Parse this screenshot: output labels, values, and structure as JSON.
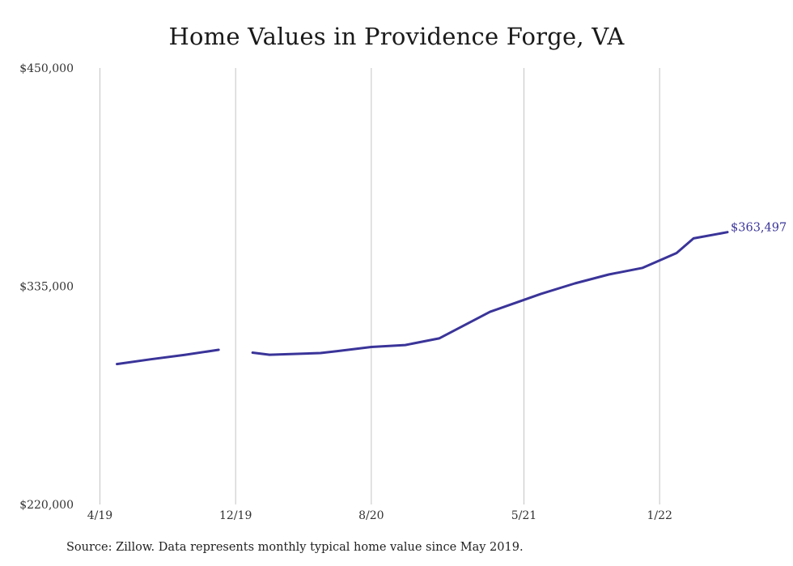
{
  "chart_data": {
    "type": "line",
    "title": "Home Values in Providence Forge, VA",
    "source": "Source: Zillow. Data represents monthly typical home value since May 2019.",
    "xlabel": "",
    "ylabel": "",
    "x_tick_labels": [
      "4/19",
      "12/19",
      "8/20",
      "5/21",
      "1/22"
    ],
    "x_tick_dates": [
      "2019-04",
      "2019-12",
      "2020-08",
      "2021-05",
      "2022-01"
    ],
    "y_ticks": [
      220000,
      335000,
      450000
    ],
    "y_tick_labels": [
      "$220,000",
      "$335,000",
      "$450,000"
    ],
    "ylim": [
      220000,
      450000
    ],
    "grid": "vertical gridlines at x ticks",
    "line_color": "#3a3499",
    "end_label": "$363,497",
    "series": [
      {
        "segments": [
          [
            {
              "x": "2019-05",
              "y": 294000
            },
            {
              "x": "2019-07",
              "y": 296500
            },
            {
              "x": "2019-09",
              "y": 298800
            },
            {
              "x": "2019-11",
              "y": 301500
            }
          ],
          [
            {
              "x": "2020-01",
              "y": 300000
            },
            {
              "x": "2020-02",
              "y": 298900
            },
            {
              "x": "2020-05",
              "y": 299800
            },
            {
              "x": "2020-06",
              "y": 300800
            },
            {
              "x": "2020-08",
              "y": 303000
            },
            {
              "x": "2020-10",
              "y": 304000
            },
            {
              "x": "2020-12",
              "y": 307500
            },
            {
              "x": "2021-03",
              "y": 321500
            },
            {
              "x": "2021-06",
              "y": 331000
            },
            {
              "x": "2021-08",
              "y": 336500
            },
            {
              "x": "2021-10",
              "y": 341200
            },
            {
              "x": "2021-12",
              "y": 344700
            },
            {
              "x": "2022-02",
              "y": 352500
            },
            {
              "x": "2022-03",
              "y": 360200
            },
            {
              "x": "2022-05",
              "y": 363497
            }
          ]
        ]
      }
    ]
  }
}
